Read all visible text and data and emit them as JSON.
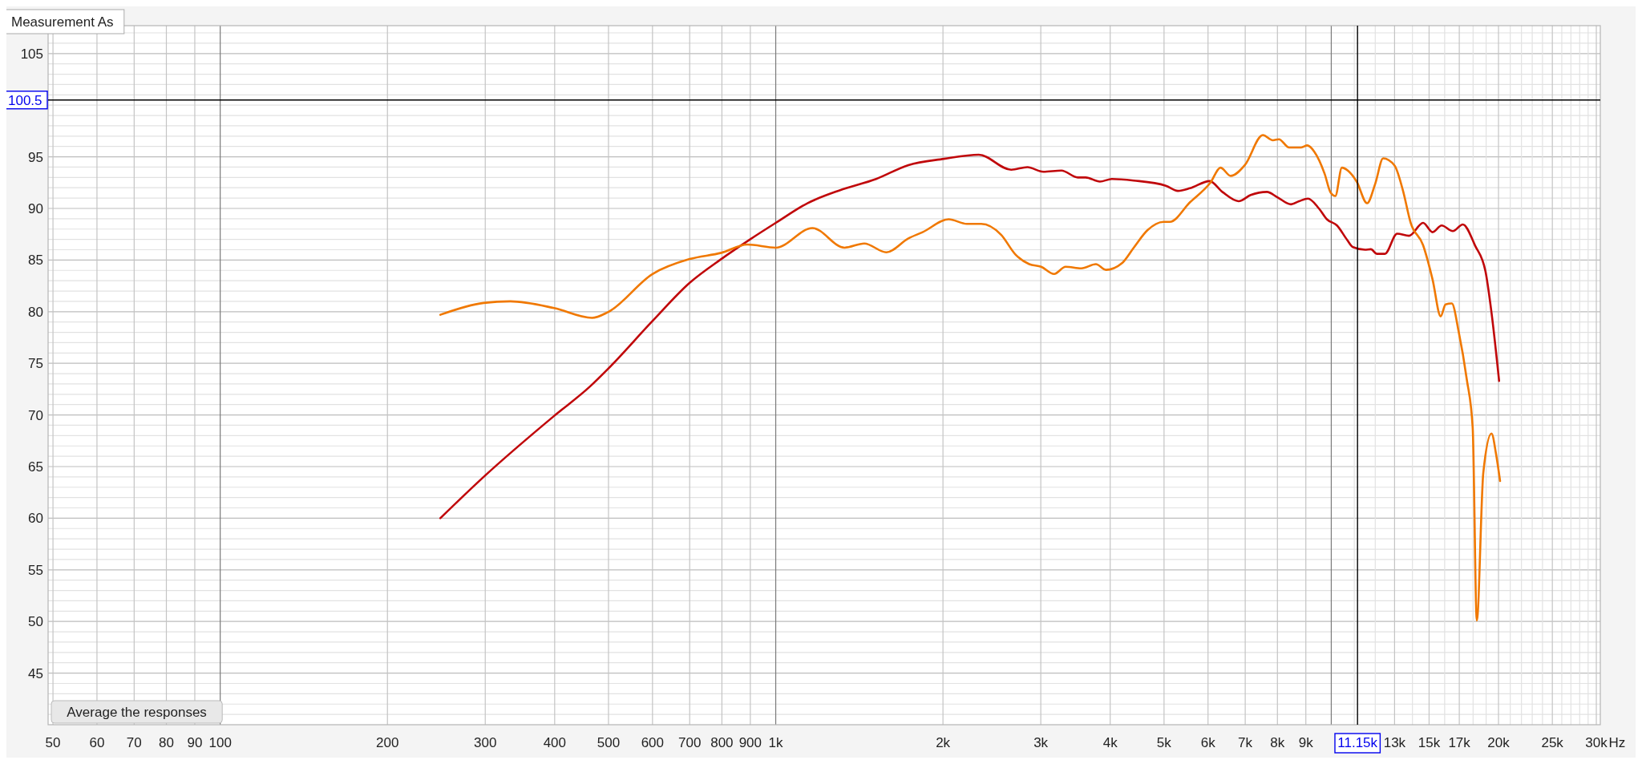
{
  "chart_data": {
    "type": "line",
    "log": "x",
    "grid": true,
    "xlabel": "Hz",
    "marker": "none",
    "line_style": "solid",
    "xlim": [
      49,
      30500
    ],
    "ylim": [
      40,
      107.7
    ],
    "xticks": [
      50,
      60,
      70,
      80,
      90,
      100,
      200,
      300,
      400,
      500,
      600,
      700,
      800,
      900,
      {
        "value": 1000,
        "label": "1k"
      },
      {
        "value": 2000,
        "label": "2k"
      },
      {
        "value": 3000,
        "label": "3k"
      },
      {
        "value": 4000,
        "label": "4k"
      },
      {
        "value": 5000,
        "label": "5k"
      },
      {
        "value": 6000,
        "label": "6k"
      },
      {
        "value": 7000,
        "label": "7k"
      },
      {
        "value": 8000,
        "label": "8k"
      },
      {
        "value": 9000,
        "label": "9k"
      },
      {
        "value": 10000,
        "label": null
      },
      {
        "value": 11000,
        "label": null
      },
      {
        "value": 12000,
        "label": null
      },
      {
        "value": 13000,
        "label": "13k"
      },
      {
        "value": 14000,
        "label": null
      },
      {
        "value": 15000,
        "label": "15k"
      },
      {
        "value": 16000,
        "label": null
      },
      {
        "value": 17000,
        "label": "17k"
      },
      {
        "value": 18000,
        "label": null
      },
      {
        "value": 19000,
        "label": null
      },
      {
        "value": 20000,
        "label": "20k"
      },
      {
        "value": 21000,
        "label": null
      },
      {
        "value": 22000,
        "label": null
      },
      {
        "value": 23000,
        "label": null
      },
      {
        "value": 24000,
        "label": null
      },
      {
        "value": 25000,
        "label": "25k"
      },
      {
        "value": 26000,
        "label": null
      },
      {
        "value": 27000,
        "label": null
      },
      {
        "value": 28000,
        "label": null
      },
      {
        "value": 29000,
        "label": null
      },
      {
        "value": 30000,
        "label": "30k"
      }
    ],
    "yticks": [
      {
        "value": 41,
        "label": null
      },
      {
        "value": 42,
        "label": null
      },
      {
        "value": 43,
        "label": null
      },
      {
        "value": 44,
        "label": null
      },
      45,
      {
        "value": 46,
        "label": null
      },
      {
        "value": 47,
        "label": null
      },
      {
        "value": 48,
        "label": null
      },
      {
        "value": 49,
        "label": null
      },
      50,
      {
        "value": 51,
        "label": null
      },
      {
        "value": 52,
        "label": null
      },
      {
        "value": 53,
        "label": null
      },
      {
        "value": 54,
        "label": null
      },
      55,
      {
        "value": 56,
        "label": null
      },
      {
        "value": 57,
        "label": null
      },
      {
        "value": 58,
        "label": null
      },
      {
        "value": 59,
        "label": null
      },
      60,
      {
        "value": 61,
        "label": null
      },
      {
        "value": 62,
        "label": null
      },
      {
        "value": 63,
        "label": null
      },
      {
        "value": 64,
        "label": null
      },
      65,
      {
        "value": 66,
        "label": null
      },
      {
        "value": 67,
        "label": null
      },
      {
        "value": 68,
        "label": null
      },
      {
        "value": 69,
        "label": null
      },
      70,
      {
        "value": 71,
        "label": null
      },
      {
        "value": 72,
        "label": null
      },
      {
        "value": 73,
        "label": null
      },
      {
        "value": 74,
        "label": null
      },
      75,
      {
        "value": 76,
        "label": null
      },
      {
        "value": 77,
        "label": null
      },
      {
        "value": 78,
        "label": null
      },
      {
        "value": 79,
        "label": null
      },
      80,
      {
        "value": 81,
        "label": null
      },
      {
        "value": 82,
        "label": null
      },
      {
        "value": 83,
        "label": null
      },
      {
        "value": 84,
        "label": null
      },
      85,
      {
        "value": 86,
        "label": null
      },
      {
        "value": 87,
        "label": null
      },
      {
        "value": 88,
        "label": null
      },
      {
        "value": 89,
        "label": null
      },
      90,
      {
        "value": 91,
        "label": null
      },
      {
        "value": 92,
        "label": null
      },
      {
        "value": 93,
        "label": null
      },
      {
        "value": 94,
        "label": null
      },
      95,
      {
        "value": 96,
        "label": null
      },
      {
        "value": 97,
        "label": null
      },
      {
        "value": 98,
        "label": null
      },
      {
        "value": 99,
        "label": null
      },
      {
        "value": 100,
        "label": null
      },
      {
        "value": 101,
        "label": null
      },
      {
        "value": 102,
        "label": null
      },
      {
        "value": 103,
        "label": null
      },
      {
        "value": 104,
        "label": null
      },
      105,
      {
        "value": 106,
        "label": null
      },
      {
        "value": 107,
        "label": null
      }
    ],
    "ref_lines": [
      {
        "axis": "y",
        "value": 100.5,
        "label": "100.5",
        "color": "#000000"
      },
      {
        "axis": "x",
        "value": 11150,
        "label": "11.15k",
        "color": "#000000"
      }
    ],
    "annotations": [
      "Measurement As",
      "Average the responses"
    ],
    "series": [
      {
        "color": "#c0070a",
        "x": [
          249,
          298,
          399,
          463,
          499,
          600,
          700,
          798,
          899,
          1000,
          1140,
          1303,
          1516,
          1733,
          2008,
          2320,
          2654,
          2838,
          3030,
          3268,
          3496,
          3613,
          3833,
          4027,
          4410,
          5038,
          5296,
          5568,
          6040,
          6367,
          6810,
          7160,
          7660,
          7990,
          8460,
          8750,
          9080,
          9500,
          9820,
          10240,
          10680,
          10940,
          11500,
          11780,
          12090,
          12490,
          13140,
          13810,
          14630,
          15220,
          15800,
          16550,
          17250,
          18150,
          18950,
          19430,
          20050
        ],
        "values": [
          60.0,
          64.0,
          69.9,
          72.75,
          74.46,
          79.1,
          82.8,
          85.1,
          87.0,
          88.6,
          90.5,
          91.75,
          92.85,
          94.2,
          94.8,
          95.2,
          93.75,
          94.0,
          93.55,
          93.67,
          93.0,
          93.0,
          92.6,
          92.85,
          92.7,
          92.2,
          91.7,
          91.95,
          92.65,
          91.6,
          90.7,
          91.3,
          91.6,
          91.1,
          90.4,
          90.7,
          90.95,
          90.0,
          88.95,
          88.35,
          86.95,
          86.25,
          86.0,
          86.05,
          85.6,
          85.6,
          87.55,
          87.35,
          88.6,
          87.7,
          88.35,
          87.8,
          88.45,
          86.4,
          83.9,
          79.9,
          73.3
        ]
      },
      {
        "color": "#f07800",
        "x": [
          249,
          298,
          333,
          399,
          467,
          499,
          600,
          700,
          798,
          889,
          1000,
          1164,
          1330,
          1443,
          1582,
          1733,
          1838,
          2048,
          2208,
          2344,
          2545,
          2700,
          2860,
          3005,
          3170,
          3325,
          3550,
          3770,
          3930,
          4200,
          4410,
          4670,
          4990,
          5120,
          5568,
          6060,
          6320,
          6590,
          6990,
          7530,
          7850,
          8050,
          8400,
          8830,
          9050,
          9320,
          9730,
          9970,
          10170,
          10450,
          10720,
          11110,
          11600,
          12000,
          12400,
          13000,
          13450,
          13900,
          14630,
          15220,
          15740,
          16060,
          16480,
          16960,
          17530,
          17970,
          18280,
          18780,
          19430,
          19800,
          20130
        ],
        "values": [
          79.7,
          80.85,
          81.0,
          80.35,
          79.4,
          79.96,
          83.65,
          85.1,
          85.7,
          86.5,
          86.2,
          88.1,
          86.2,
          86.6,
          85.75,
          87.1,
          87.7,
          88.95,
          88.5,
          88.5,
          87.45,
          85.55,
          84.6,
          84.35,
          83.65,
          84.35,
          84.2,
          84.6,
          84.05,
          84.7,
          86.2,
          87.9,
          88.7,
          88.7,
          90.6,
          92.5,
          93.95,
          93.15,
          94.2,
          97.1,
          96.6,
          96.7,
          95.9,
          95.9,
          96.1,
          95.5,
          93.35,
          91.55,
          91.2,
          93.95,
          93.65,
          92.6,
          90.5,
          92.4,
          94.85,
          94.15,
          91.8,
          88.6,
          86.45,
          83.1,
          79.55,
          80.7,
          80.8,
          78.05,
          73.5,
          68.8,
          50.1,
          64.4,
          68.2,
          66.2,
          63.6
        ]
      }
    ]
  }
}
